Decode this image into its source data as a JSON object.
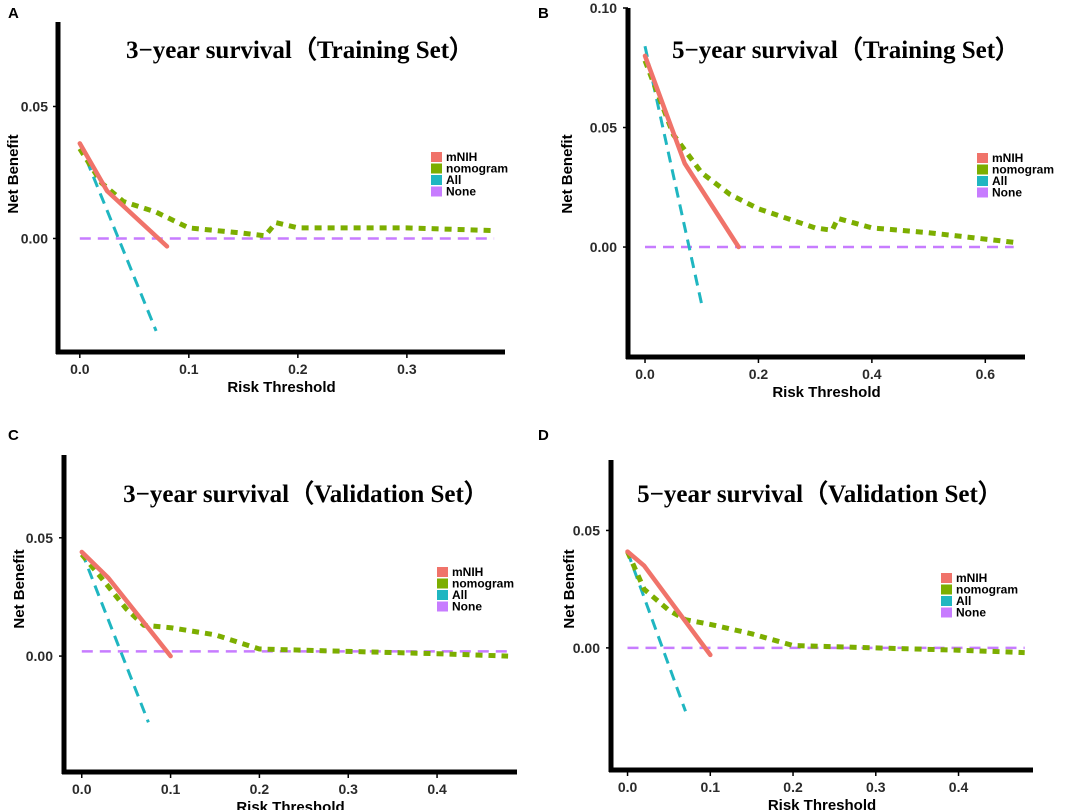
{
  "figure": {
    "legend_entries": [
      {
        "name": "mNIH",
        "color": "#F0736A"
      },
      {
        "name": "nomogram",
        "color": "#7CAE00"
      },
      {
        "name": "All",
        "color": "#1FB6C1"
      },
      {
        "name": "None",
        "color": "#C77CFF"
      }
    ]
  },
  "chart_data": [
    {
      "type": "line",
      "panel_label": "A",
      "title": "3−year survival（Training Set）",
      "xlabel": "Risk Threshold",
      "ylabel": "Net Benefit",
      "xlim": [
        -0.02,
        0.39
      ],
      "ylim": [
        -0.043,
        0.082
      ],
      "xticks": [
        0.0,
        0.1,
        0.2,
        0.3
      ],
      "xtick_labels": [
        "0.0",
        "0.1",
        "0.2",
        "0.3"
      ],
      "yticks": [
        0.0,
        0.05
      ],
      "ytick_labels": [
        "0.00",
        "0.05"
      ],
      "series": [
        {
          "name": "mNIH",
          "x": [
            0.0,
            0.025,
            0.08
          ],
          "y": [
            0.036,
            0.018,
            -0.003
          ]
        },
        {
          "name": "nomogram",
          "x": [
            0.0,
            0.02,
            0.04,
            0.07,
            0.1,
            0.15,
            0.17,
            0.18,
            0.2,
            0.3,
            0.38
          ],
          "y": [
            0.034,
            0.021,
            0.014,
            0.01,
            0.004,
            0.002,
            0.001,
            0.006,
            0.004,
            0.004,
            0.003
          ]
        },
        {
          "name": "All",
          "x": [
            0.0,
            0.07
          ],
          "y": [
            0.036,
            -0.035
          ]
        },
        {
          "name": "None",
          "x": [
            0.0,
            0.38
          ],
          "y": [
            0.0,
            0.0
          ]
        }
      ]
    },
    {
      "type": "line",
      "panel_label": "B",
      "title": "5−year survival（Training Set）",
      "xlabel": "Risk Threshold",
      "ylabel": "Net Benefit",
      "xlim": [
        -0.03,
        0.67
      ],
      "ylim": [
        -0.046,
        0.1
      ],
      "xticks": [
        0.0,
        0.2,
        0.4,
        0.6
      ],
      "xtick_labels": [
        "0.0",
        "0.2",
        "0.4",
        "0.6"
      ],
      "yticks": [
        0.0,
        0.05,
        0.1
      ],
      "ytick_labels": [
        "0.00",
        "0.05",
        "0.10"
      ],
      "series": [
        {
          "name": "mNIH",
          "x": [
            0.0,
            0.07,
            0.165
          ],
          "y": [
            0.08,
            0.035,
            0.0
          ]
        },
        {
          "name": "nomogram",
          "x": [
            0.0,
            0.05,
            0.1,
            0.15,
            0.2,
            0.3,
            0.33,
            0.34,
            0.4,
            0.5,
            0.65
          ],
          "y": [
            0.078,
            0.047,
            0.031,
            0.022,
            0.016,
            0.008,
            0.007,
            0.012,
            0.008,
            0.006,
            0.002
          ]
        },
        {
          "name": "All",
          "x": [
            0.0,
            0.1
          ],
          "y": [
            0.084,
            -0.024
          ]
        },
        {
          "name": "None",
          "x": [
            0.0,
            0.65
          ],
          "y": [
            0.0,
            0.0
          ]
        }
      ]
    },
    {
      "type": "line",
      "panel_label": "C",
      "title": "3−year survival（Validation Set）",
      "xlabel": "Risk Threshold",
      "ylabel": "Net Benefit",
      "xlim": [
        -0.02,
        0.49
      ],
      "ylim": [
        -0.049,
        0.085
      ],
      "xticks": [
        0.0,
        0.1,
        0.2,
        0.3,
        0.4
      ],
      "xtick_labels": [
        "0.0",
        "0.1",
        "0.2",
        "0.3",
        "0.4"
      ],
      "yticks": [
        0.0,
        0.05
      ],
      "ytick_labels": [
        "0.00",
        "0.05"
      ],
      "series": [
        {
          "name": "mNIH",
          "x": [
            0.0,
            0.03,
            0.1
          ],
          "y": [
            0.044,
            0.033,
            0.0
          ]
        },
        {
          "name": "nomogram",
          "x": [
            0.0,
            0.02,
            0.05,
            0.07,
            0.1,
            0.15,
            0.2,
            0.3,
            0.4,
            0.48
          ],
          "y": [
            0.043,
            0.034,
            0.02,
            0.013,
            0.012,
            0.009,
            0.003,
            0.002,
            0.001,
            0.0
          ]
        },
        {
          "name": "All",
          "x": [
            0.0,
            0.075
          ],
          "y": [
            0.044,
            -0.028
          ]
        },
        {
          "name": "None",
          "x": [
            0.0,
            0.48
          ],
          "y": [
            0.002,
            0.002
          ]
        }
      ]
    },
    {
      "type": "line",
      "panel_label": "D",
      "title": "5−year survival（Validation Set）",
      "xlabel": "Risk Threshold",
      "ylabel": "Net Benefit",
      "xlim": [
        -0.02,
        0.49
      ],
      "ylim": [
        -0.052,
        0.08
      ],
      "xticks": [
        0.0,
        0.1,
        0.2,
        0.3,
        0.4
      ],
      "xtick_labels": [
        "0.0",
        "0.1",
        "0.2",
        "0.3",
        "0.4"
      ],
      "yticks": [
        0.0,
        0.05
      ],
      "ytick_labels": [
        "0.00",
        "0.05"
      ],
      "series": [
        {
          "name": "mNIH",
          "x": [
            0.0,
            0.02,
            0.1
          ],
          "y": [
            0.041,
            0.035,
            -0.003
          ]
        },
        {
          "name": "nomogram",
          "x": [
            0.0,
            0.02,
            0.05,
            0.07,
            0.1,
            0.15,
            0.2,
            0.3,
            0.4,
            0.48
          ],
          "y": [
            0.041,
            0.025,
            0.016,
            0.012,
            0.01,
            0.006,
            0.001,
            0.0,
            -0.001,
            -0.002
          ]
        },
        {
          "name": "All",
          "x": [
            0.0,
            0.07
          ],
          "y": [
            0.041,
            -0.027
          ]
        },
        {
          "name": "None",
          "x": [
            0.0,
            0.48
          ],
          "y": [
            0.0,
            0.0
          ]
        }
      ]
    }
  ]
}
